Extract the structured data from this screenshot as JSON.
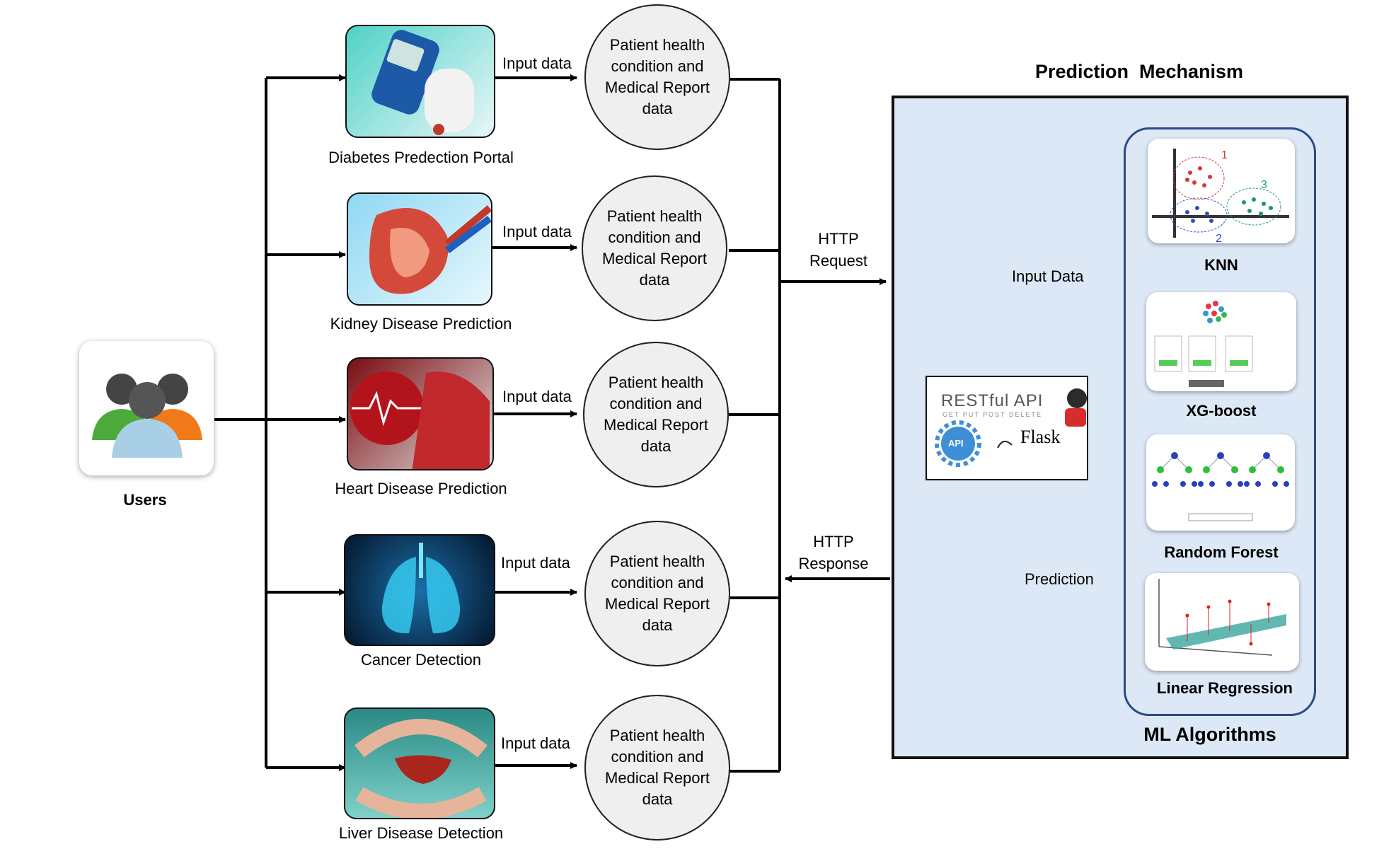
{
  "users": {
    "label": "Users",
    "icon": "users-group-icon"
  },
  "portals": [
    {
      "name": "Diabetes Predection Portal",
      "icon": "glucose-meter-icon",
      "input_label": "Input data",
      "data_label": "Patient health condition and Medical Report data"
    },
    {
      "name": "Kidney Disease Prediction",
      "icon": "kidney-icon",
      "input_label": "Input data",
      "data_label": "Patient health condition and Medical Report data"
    },
    {
      "name": "Heart Disease Prediction",
      "icon": "heart-icon",
      "input_label": "Input data",
      "data_label": "Patient health condition and Medical Report data"
    },
    {
      "name": "Cancer Detection",
      "icon": "lungs-xray-icon",
      "input_label": "Input data",
      "data_label": "Patient health condition and Medical Report data"
    },
    {
      "name": "Liver Disease Detection",
      "icon": "liver-icon",
      "input_label": "Input data",
      "data_label": "Patient health condition and Medical Report data"
    }
  ],
  "http": {
    "request_line1": "HTTP",
    "request_line2": "Request",
    "response_line1": "HTTP",
    "response_line2": "Response"
  },
  "mechanism": {
    "title": "Prediction  Mechanism",
    "api": {
      "title": "RESTful API",
      "methods": "GET PUT POST DELETE",
      "badge": "API",
      "flask": "Flask"
    },
    "input_label": "Input Data",
    "prediction_label": "Prediction",
    "ml_title": "ML Algorithms",
    "algorithms": [
      {
        "name": "KNN",
        "icon": "knn-cluster-icon",
        "cluster_labels": [
          "1",
          "2",
          "3"
        ]
      },
      {
        "name": "XG-boost",
        "icon": "xgboost-icon"
      },
      {
        "name": "Random Forest",
        "icon": "random-forest-icon"
      },
      {
        "name": "Linear Regression",
        "icon": "linear-regression-icon"
      }
    ]
  },
  "colors": {
    "panel_bg": "#dce8f5",
    "algo_border": "#2b4a8a",
    "circle_bg": "#efefef"
  }
}
